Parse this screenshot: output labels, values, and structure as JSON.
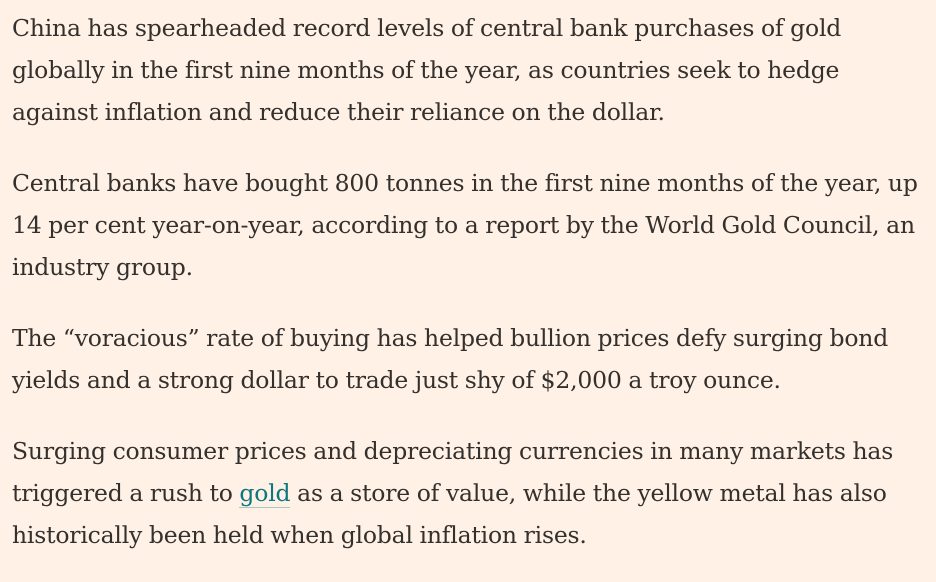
{
  "article": {
    "paragraphs": [
      {
        "text": "China has spearheaded record levels of central bank purchases of gold globally in the first nine months of the year, as countries seek to hedge against inflation and reduce their reliance on the dollar."
      },
      {
        "text": "Central banks have bought 800 tonnes in the first nine months of the year, up 14 per cent year-on-year, according to a report by the World Gold Council, an industry group."
      },
      {
        "text": "The “voracious” rate of buying has helped bullion prices defy surging bond yields and a strong dollar to trade just shy of $2,000 a troy ounce."
      },
      {
        "before": "Surging consumer prices and depreciating currencies in many markets has triggered a rush to ",
        "link": "gold",
        "after": " as a store of value, while the yellow metal has also historically been held when global inflation rises."
      }
    ]
  },
  "colors": {
    "background": "#fff1e5",
    "text": "#33302e",
    "link": "#0d7680"
  }
}
